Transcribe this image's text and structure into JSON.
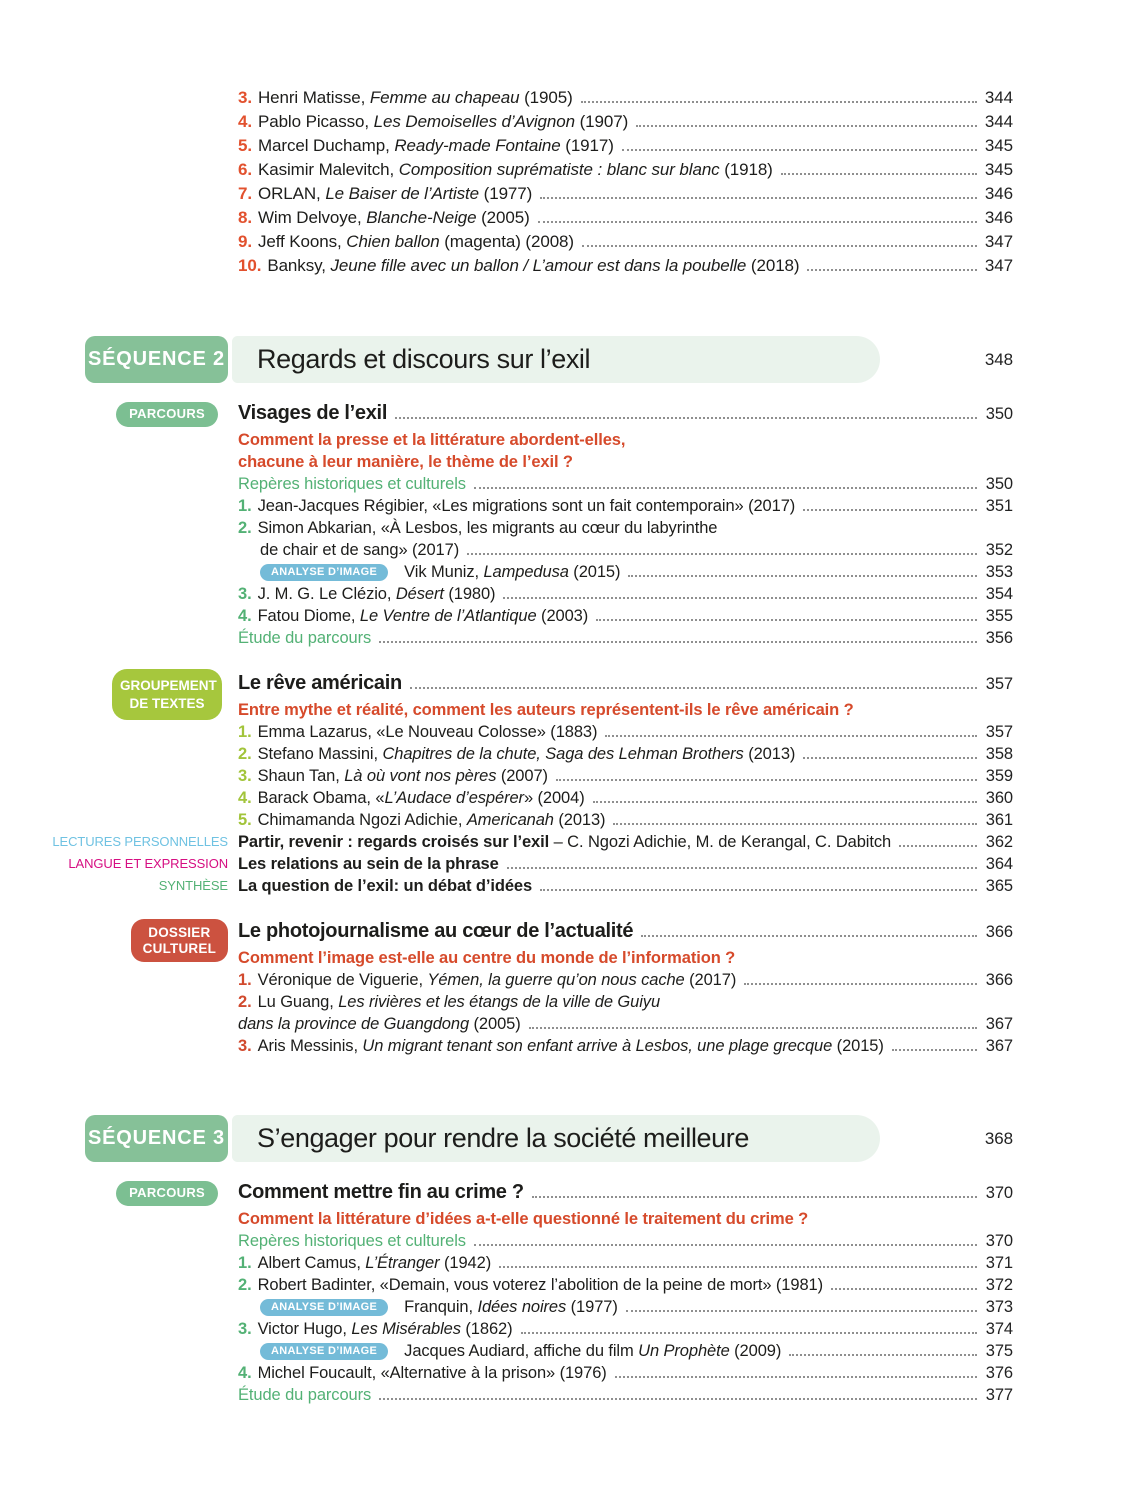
{
  "document": {
    "kind": "textbook-table-of-contents",
    "language": "fr"
  },
  "labels": {
    "analyse_image": "ANALYSE D’IMAGE"
  },
  "colors": {
    "sequence_badge_green": "#86c198",
    "sequence_bar_light_green": "#eaf3ec",
    "parcours_green": "#7cbf92",
    "groupement_lime": "#a6c73d",
    "dossier_red": "#cc5240",
    "analyse_blue": "#74bbd8",
    "question_red": "#d64a2b",
    "green_entry": "#53b175",
    "top_number_orange": "#e2512e",
    "lectures_blue": "#6fc2e2",
    "langue_magenta": "#d60e82",
    "body_text": "#1d1d1b"
  },
  "top_list": {
    "accent": "#e2512e",
    "items": [
      {
        "kind": "item",
        "num": "3.",
        "parts": [
          {
            "t": "Henri Matisse, "
          },
          {
            "t": "Femme au chapeau",
            "i": true
          },
          {
            "t": " (1905)"
          }
        ],
        "page": "344"
      },
      {
        "kind": "item",
        "num": "4.",
        "parts": [
          {
            "t": "Pablo Picasso, "
          },
          {
            "t": "Les Demoiselles d’Avignon",
            "i": true
          },
          {
            "t": " (1907)"
          }
        ],
        "page": "344"
      },
      {
        "kind": "item",
        "num": "5.",
        "parts": [
          {
            "t": "Marcel Duchamp, "
          },
          {
            "t": "Ready-made Fontaine",
            "i": true
          },
          {
            "t": " (1917)"
          }
        ],
        "page": "345"
      },
      {
        "kind": "item",
        "num": "6.",
        "parts": [
          {
            "t": "Kasimir Malevitch, "
          },
          {
            "t": "Composition suprématiste : blanc sur blanc",
            "i": true
          },
          {
            "t": " (1918)"
          }
        ],
        "page": "345"
      },
      {
        "kind": "item",
        "num": "7.",
        "parts": [
          {
            "t": "ORLAN, "
          },
          {
            "t": "Le Baiser de l’Artiste",
            "i": true
          },
          {
            "t": " (1977)"
          }
        ],
        "page": "346"
      },
      {
        "kind": "item",
        "num": "8.",
        "parts": [
          {
            "t": "Wim Delvoye, "
          },
          {
            "t": "Blanche-Neige",
            "i": true
          },
          {
            "t": " (2005)"
          }
        ],
        "page": "346"
      },
      {
        "kind": "item",
        "num": "9.",
        "parts": [
          {
            "t": "Jeff Koons, "
          },
          {
            "t": "Chien ballon",
            "i": true
          },
          {
            "t": " (magenta) (2008)"
          }
        ],
        "page": "347"
      },
      {
        "kind": "item",
        "num": "10.",
        "parts": [
          {
            "t": "Banksy, "
          },
          {
            "t": "Jeune fille avec un ballon / L’amour est dans la poubelle",
            "i": true
          },
          {
            "t": " (2018)"
          }
        ],
        "page": "347"
      }
    ]
  },
  "sections": [
    {
      "badge": "SÉQUENCE 2",
      "title": "Regards et discours sur l’exil",
      "page": "348",
      "groups": [
        {
          "badge_style": "parcours",
          "badge_lines": [
            "PARCOURS"
          ],
          "badge_color": "#7cbf92",
          "accent": "#53b175",
          "title": "Visages de l’exil",
          "page": "350",
          "question": [
            "Comment la presse et la littérature abordent-elles,",
            "chacune à leur manière, le thème de l’exil ?"
          ],
          "rows": [
            {
              "kind": "green",
              "text": "Repères historiques et culturels",
              "page": "350"
            },
            {
              "kind": "item",
              "num": "1.",
              "parts": [
                {
                  "t": "Jean-Jacques Régibier, «Les migrations sont un fait contemporain» (2017)"
                }
              ],
              "page": "351"
            },
            {
              "kind": "item",
              "num": "2.",
              "parts": [
                {
                  "t": "Simon Abkarian, «À Lesbos, les migrants au cœur du labyrinthe"
                }
              ],
              "page": null
            },
            {
              "kind": "cont",
              "indent": 22,
              "parts": [
                {
                  "t": "de chair et de sang» (2017)"
                }
              ],
              "page": "352"
            },
            {
              "kind": "analyse",
              "parts": [
                {
                  "t": "Vik Muniz, "
                },
                {
                  "t": "Lampedusa",
                  "i": true
                },
                {
                  "t": " (2015)"
                }
              ],
              "page": "353"
            },
            {
              "kind": "item",
              "num": "3.",
              "parts": [
                {
                  "t": "J. M. G. Le Clézio, "
                },
                {
                  "t": "Désert",
                  "i": true
                },
                {
                  "t": " (1980)"
                }
              ],
              "page": "354"
            },
            {
              "kind": "item",
              "num": "4.",
              "parts": [
                {
                  "t": "Fatou Diome, "
                },
                {
                  "t": "Le Ventre de l’Atlantique",
                  "i": true
                },
                {
                  "t": " (2003)"
                }
              ],
              "page": "355"
            },
            {
              "kind": "green",
              "text": "Étude du parcours",
              "page": "356"
            }
          ]
        },
        {
          "badge_style": "groupement",
          "badge_lines": [
            "GROUPEMENT",
            "DE TEXTES"
          ],
          "badge_color": "#a6c73d",
          "accent": "#a2c43a",
          "title": "Le rêve américain",
          "page": "357",
          "question": [
            "Entre mythe et réalité, comment les auteurs représentent-ils le rêve américain ?"
          ],
          "rows": [
            {
              "kind": "item",
              "num": "1.",
              "parts": [
                {
                  "t": "Emma Lazarus, «Le Nouveau Colosse» (1883)"
                }
              ],
              "page": "357"
            },
            {
              "kind": "item",
              "num": "2.",
              "parts": [
                {
                  "t": "Stefano Massini, "
                },
                {
                  "t": "Chapitres de la chute, Saga des Lehman Brothers",
                  "i": true
                },
                {
                  "t": " (2013)"
                }
              ],
              "page": "358"
            },
            {
              "kind": "item",
              "num": "3.",
              "parts": [
                {
                  "t": "Shaun Tan, "
                },
                {
                  "t": "Là où vont nos pères",
                  "i": true
                },
                {
                  "t": " (2007)"
                }
              ],
              "page": "359"
            },
            {
              "kind": "item",
              "num": "4.",
              "parts": [
                {
                  "t": "Barack Obama, «"
                },
                {
                  "t": "L’Audace d’espérer",
                  "i": true
                },
                {
                  "t": "» (2004)"
                }
              ],
              "page": "360"
            },
            {
              "kind": "item",
              "num": "5.",
              "parts": [
                {
                  "t": "Chimamanda Ngozi Adichie, "
                },
                {
                  "t": "Americanah",
                  "i": true
                },
                {
                  "t": " (2013)"
                }
              ],
              "page": "361"
            },
            {
              "kind": "side",
              "label": "LECTURES PERSONNELLES",
              "label_color": "#6fc2e2",
              "parts": [
                {
                  "t": "Partir, revenir : regards croisés sur l’exil",
                  "b": true
                },
                {
                  "t": " – C. Ngozi Adichie, M. de Kerangal, C. Dabitch"
                }
              ],
              "page": "362"
            },
            {
              "kind": "side",
              "label": "LANGUE ET EXPRESSION",
              "label_color": "#d60e82",
              "parts": [
                {
                  "t": "Les relations au sein de la phrase",
                  "b": true
                }
              ],
              "page": "364"
            },
            {
              "kind": "side",
              "label": "SYNTHÈSE",
              "label_color": "#53b175",
              "parts": [
                {
                  "t": "La question de l’exil: un débat d’idées",
                  "b": true
                }
              ],
              "page": "365"
            }
          ]
        },
        {
          "badge_style": "dossier",
          "badge_lines": [
            "DOSSIER CULTUREL"
          ],
          "badge_color": "#cc5240",
          "accent": "#d14a2e",
          "title": "Le photojournalisme au cœur de l’actualité",
          "page": "366",
          "question": [
            "Comment l’image est-elle au centre du monde de l’information ?"
          ],
          "rows": [
            {
              "kind": "item",
              "num": "1.",
              "parts": [
                {
                  "t": "Véronique de Viguerie, "
                },
                {
                  "t": "Yémen, la guerre qu’on nous cache",
                  "i": true
                },
                {
                  "t": " (2017)"
                }
              ],
              "page": "366"
            },
            {
              "kind": "item",
              "num": "2.",
              "parts": [
                {
                  "t": "Lu Guang, "
                },
                {
                  "t": "Les rivières et les étangs de la ville de Guiyu",
                  "i": true
                }
              ],
              "page": null
            },
            {
              "kind": "cont",
              "indent": 0,
              "parts": [
                {
                  "t": "dans la province de Guangdong",
                  "i": true
                },
                {
                  "t": " (2005)"
                }
              ],
              "page": "367"
            },
            {
              "kind": "item",
              "num": "3.",
              "parts": [
                {
                  "t": "Aris Messinis, "
                },
                {
                  "t": "Un migrant tenant son enfant arrive à Lesbos, une plage grecque",
                  "i": true
                },
                {
                  "t": " (2015)"
                }
              ],
              "page": "367"
            }
          ]
        }
      ]
    },
    {
      "badge": "SÉQUENCE 3",
      "title": "S’engager pour rendre la société meilleure",
      "page": "368",
      "groups": [
        {
          "badge_style": "parcours",
          "badge_lines": [
            "PARCOURS"
          ],
          "badge_color": "#7cbf92",
          "accent": "#53b175",
          "title": "Comment mettre fin au crime ?",
          "page": "370",
          "question": [
            "Comment la littérature d’idées a-t-elle questionné le traitement du crime ?"
          ],
          "rows": [
            {
              "kind": "green",
              "text": "Repères historiques et culturels",
              "page": "370"
            },
            {
              "kind": "item",
              "num": "1.",
              "parts": [
                {
                  "t": "Albert Camus, "
                },
                {
                  "t": "L’Étranger",
                  "i": true
                },
                {
                  "t": " (1942)"
                }
              ],
              "page": "371"
            },
            {
              "kind": "item",
              "num": "2.",
              "parts": [
                {
                  "t": "Robert Badinter, «Demain, vous voterez l’abolition de la peine de mort» (1981)"
                }
              ],
              "page": "372"
            },
            {
              "kind": "analyse",
              "parts": [
                {
                  "t": "Franquin, "
                },
                {
                  "t": "Idées noires",
                  "i": true
                },
                {
                  "t": " (1977)"
                }
              ],
              "page": "373"
            },
            {
              "kind": "item",
              "num": "3.",
              "parts": [
                {
                  "t": "Victor Hugo, "
                },
                {
                  "t": "Les Misérables",
                  "i": true
                },
                {
                  "t": " (1862)"
                }
              ],
              "page": "374"
            },
            {
              "kind": "analyse",
              "parts": [
                {
                  "t": "Jacques Audiard, affiche du film "
                },
                {
                  "t": "Un Prophète",
                  "i": true
                },
                {
                  "t": " (2009)"
                }
              ],
              "page": "375"
            },
            {
              "kind": "item",
              "num": "4.",
              "parts": [
                {
                  "t": "Michel Foucault, «Alternative à la prison» (1976)"
                }
              ],
              "page": "376"
            },
            {
              "kind": "green",
              "text": "Étude du parcours",
              "page": "377"
            }
          ]
        }
      ]
    }
  ]
}
